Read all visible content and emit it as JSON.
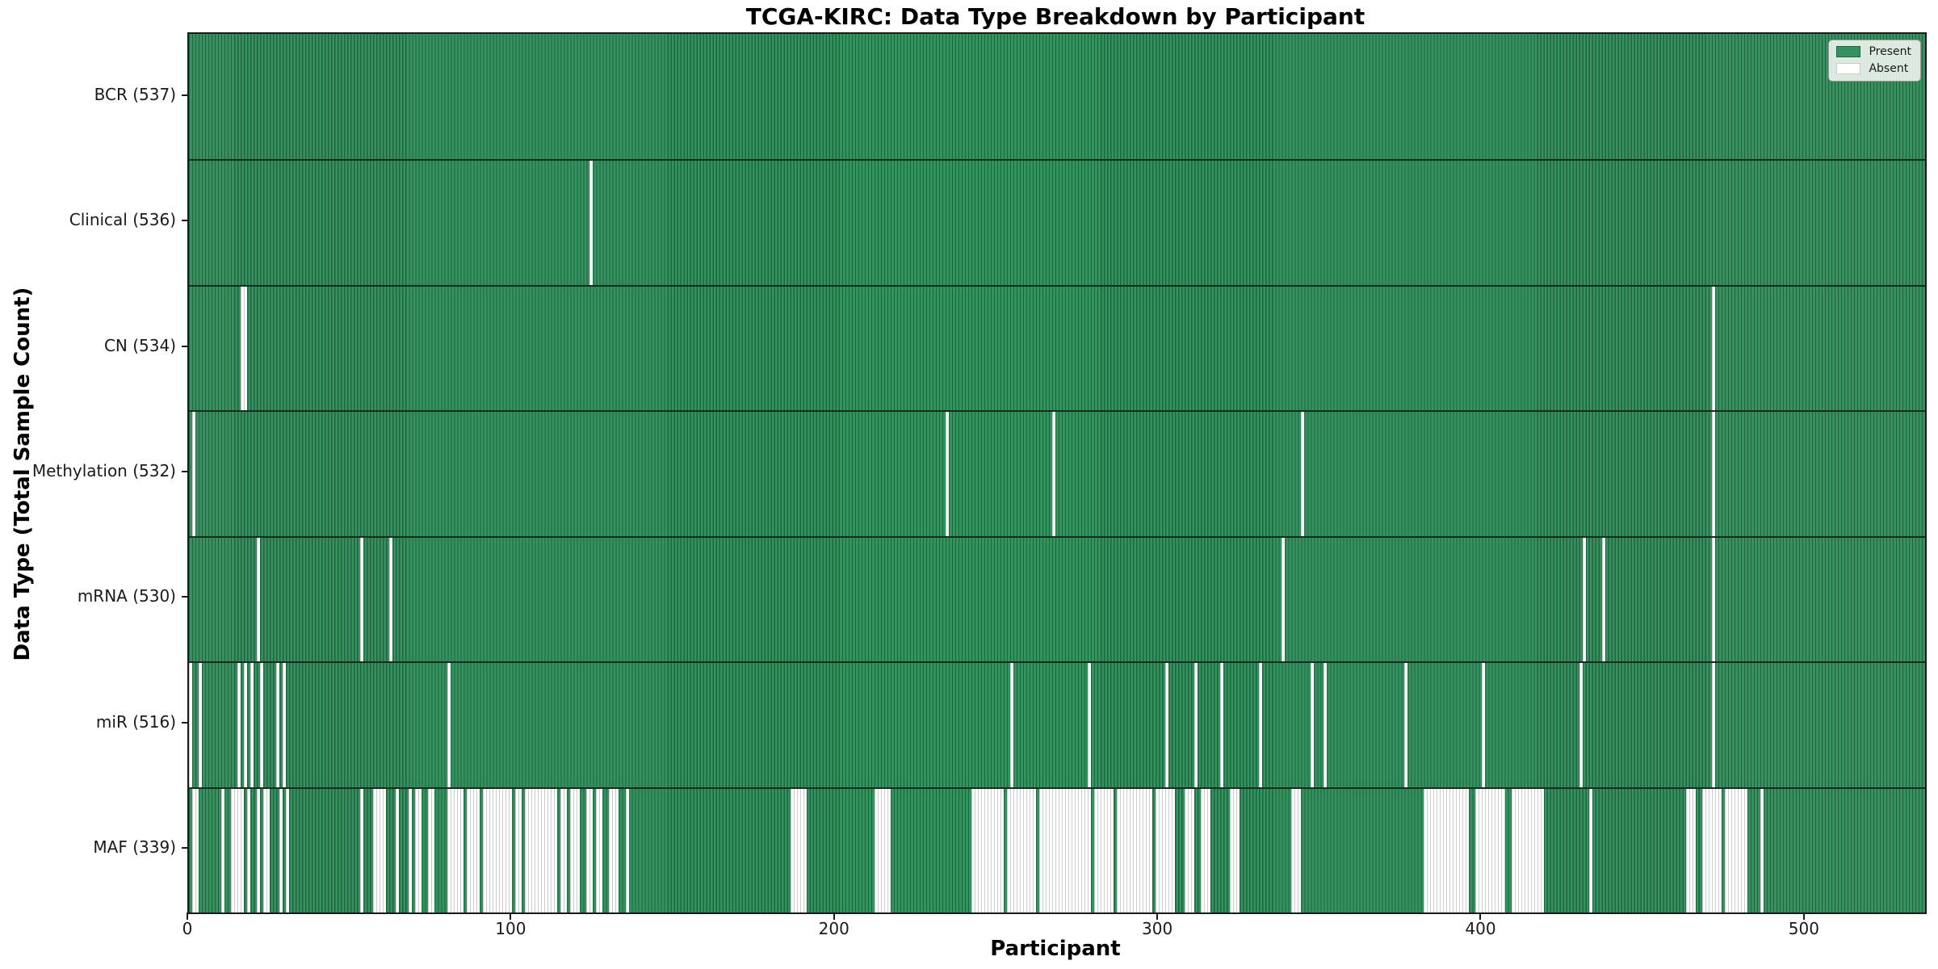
{
  "title": "TCGA-KIRC: Data Type Breakdown by Participant",
  "xlabel": "Participant",
  "ylabel": "Data Type (Total Sample Count)",
  "legend": {
    "present_label": "Present",
    "absent_label": "Absent"
  },
  "colors": {
    "present_face": "#35925f",
    "present_edge": "#1f6540",
    "absent_face": "#ffffff",
    "absent_edge": "#cccccc",
    "axis": "#1a1a1a"
  },
  "chart_data": {
    "type": "heatmap",
    "title": "TCGA-KIRC: Data Type Breakdown by Participant",
    "xlabel": "Participant",
    "ylabel": "Data Type (Total Sample Count)",
    "x_ticks": [
      0,
      100,
      200,
      300,
      400,
      500
    ],
    "xlim": [
      0,
      537
    ],
    "n_participants": 537,
    "legend_position": "upper right",
    "cell_states": [
      "Present",
      "Absent"
    ],
    "rows": [
      {
        "name": "BCR",
        "label": "BCR (537)",
        "present_count": 537,
        "absent_count": 0,
        "absent_ranges": []
      },
      {
        "name": "Clinical",
        "label": "Clinical (536)",
        "present_count": 536,
        "absent_count": 1,
        "absent_ranges": [
          [
            124,
            124
          ]
        ]
      },
      {
        "name": "CN",
        "label": "CN (534)",
        "present_count": 534,
        "absent_count": 3,
        "absent_ranges": [
          [
            16,
            17
          ],
          [
            471,
            471
          ]
        ]
      },
      {
        "name": "Methylation",
        "label": "Methylation (532)",
        "present_count": 532,
        "absent_count": 5,
        "absent_ranges": [
          [
            1,
            1
          ],
          [
            234,
            234
          ],
          [
            267,
            267
          ],
          [
            344,
            344
          ],
          [
            471,
            471
          ]
        ]
      },
      {
        "name": "mRNA",
        "label": "mRNA (530)",
        "present_count": 530,
        "absent_count": 7,
        "absent_ranges": [
          [
            21,
            21
          ],
          [
            53,
            53
          ],
          [
            62,
            62
          ],
          [
            338,
            338
          ],
          [
            431,
            431
          ],
          [
            437,
            437
          ],
          [
            471,
            471
          ]
        ]
      },
      {
        "name": "miR",
        "label": "miR (516)",
        "present_count": 516,
        "absent_count": 21,
        "absent_ranges": [
          [
            0,
            0
          ],
          [
            3,
            3
          ],
          [
            15,
            15
          ],
          [
            17,
            17
          ],
          [
            19,
            19
          ],
          [
            22,
            22
          ],
          [
            27,
            27
          ],
          [
            29,
            29
          ],
          [
            80,
            80
          ],
          [
            254,
            254
          ],
          [
            278,
            278
          ],
          [
            302,
            302
          ],
          [
            311,
            311
          ],
          [
            319,
            319
          ],
          [
            331,
            331
          ],
          [
            347,
            347
          ],
          [
            351,
            351
          ],
          [
            376,
            376
          ],
          [
            400,
            400
          ],
          [
            430,
            430
          ],
          [
            471,
            471
          ]
        ]
      },
      {
        "name": "MAF",
        "label": "MAF (339)",
        "present_count": 339,
        "absent_count": 198,
        "absent_ranges": [
          [
            1,
            2
          ],
          [
            10,
            10
          ],
          [
            13,
            16
          ],
          [
            18,
            18
          ],
          [
            21,
            21
          ],
          [
            23,
            24
          ],
          [
            28,
            28
          ],
          [
            30,
            30
          ],
          [
            53,
            53
          ],
          [
            57,
            60
          ],
          [
            64,
            64
          ],
          [
            68,
            68
          ],
          [
            70,
            71
          ],
          [
            74,
            75
          ],
          [
            80,
            84
          ],
          [
            86,
            89
          ],
          [
            91,
            99
          ],
          [
            101,
            102
          ],
          [
            104,
            113
          ],
          [
            115,
            116
          ],
          [
            118,
            120
          ],
          [
            123,
            124
          ],
          [
            126,
            127
          ],
          [
            130,
            132
          ],
          [
            135,
            135
          ],
          [
            186,
            190
          ],
          [
            212,
            216
          ],
          [
            242,
            251
          ],
          [
            253,
            261
          ],
          [
            263,
            278
          ],
          [
            280,
            285
          ],
          [
            287,
            297
          ],
          [
            299,
            304
          ],
          [
            308,
            310
          ],
          [
            313,
            315
          ],
          [
            322,
            324
          ],
          [
            341,
            343
          ],
          [
            382,
            395
          ],
          [
            398,
            406
          ],
          [
            409,
            418
          ],
          [
            433,
            433
          ],
          [
            463,
            465
          ],
          [
            468,
            473
          ],
          [
            475,
            481
          ],
          [
            486,
            486
          ]
        ]
      }
    ]
  }
}
